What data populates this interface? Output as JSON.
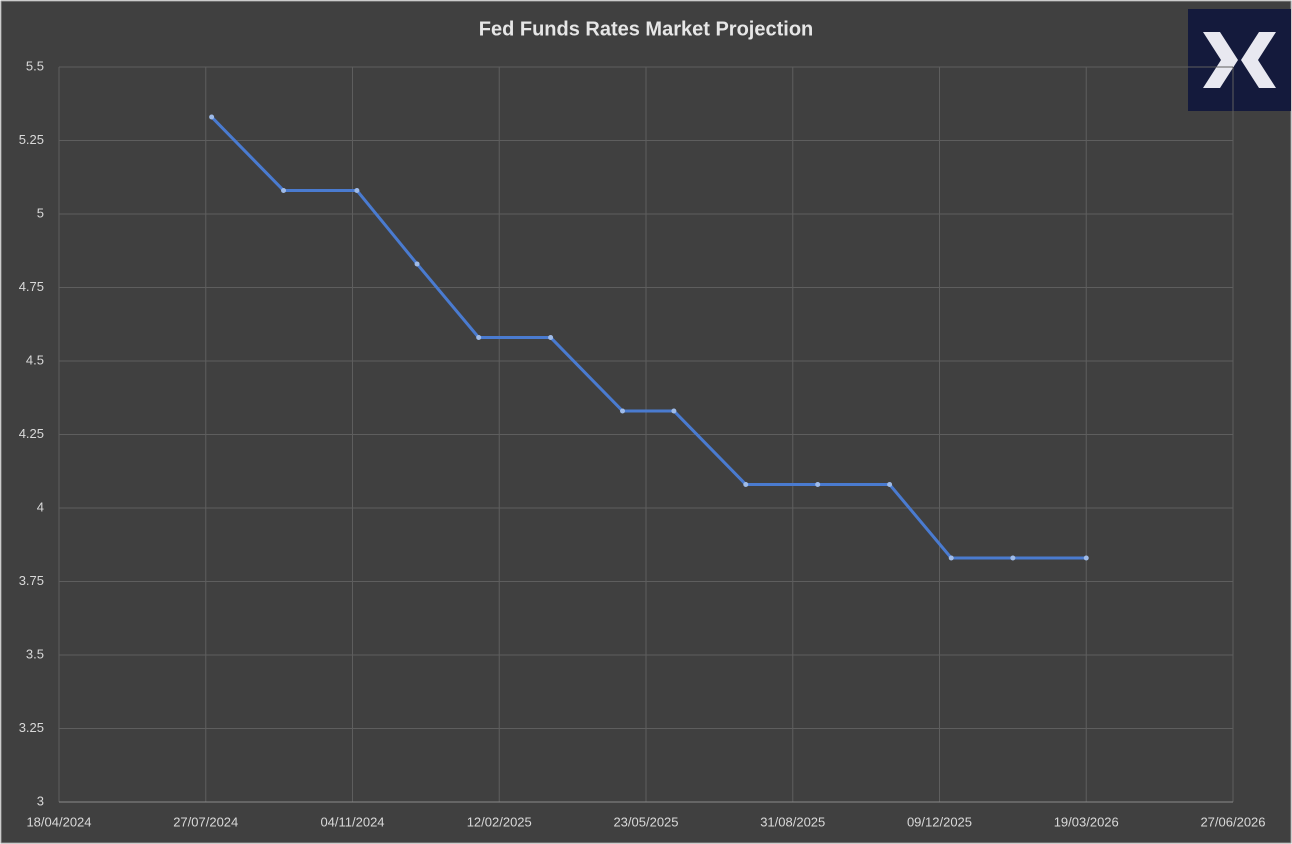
{
  "chart_data": {
    "type": "line",
    "title": "Fed Funds Rates Market Projection",
    "x": [
      "31/07/2024",
      "18/09/2024",
      "07/11/2024",
      "18/12/2024",
      "29/01/2025",
      "19/03/2025",
      "07/05/2025",
      "11/06/2025",
      "30/07/2025",
      "17/09/2025",
      "05/11/2025",
      "17/12/2025",
      "28/01/2026",
      "19/03/2026"
    ],
    "series": [
      {
        "name": "Fed Funds Rate",
        "color": "#4a7bd0",
        "values": [
          5.33,
          5.08,
          5.08,
          4.83,
          4.58,
          4.58,
          4.33,
          4.33,
          4.08,
          4.08,
          4.08,
          3.83,
          3.83,
          3.83
        ]
      }
    ],
    "xlim": [
      "18/04/2024",
      "27/06/2026"
    ],
    "xticks": [
      "18/04/2024",
      "27/07/2024",
      "04/11/2024",
      "12/02/2025",
      "23/05/2025",
      "31/08/2025",
      "09/12/2025",
      "19/03/2026",
      "27/06/2026"
    ],
    "ylim": [
      3,
      5.5
    ],
    "yticks": [
      3,
      3.25,
      3.5,
      3.75,
      4,
      4.25,
      4.5,
      4.75,
      5,
      5.25,
      5.5
    ],
    "grid": true
  }
}
